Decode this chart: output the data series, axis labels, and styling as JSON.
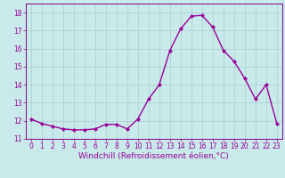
{
  "x": [
    0,
    1,
    2,
    3,
    4,
    5,
    6,
    7,
    8,
    9,
    10,
    11,
    12,
    13,
    14,
    15,
    16,
    17,
    18,
    19,
    20,
    21,
    22,
    23
  ],
  "y": [
    12.1,
    11.85,
    11.7,
    11.55,
    11.5,
    11.5,
    11.55,
    11.8,
    11.8,
    11.55,
    12.1,
    13.2,
    14.0,
    15.9,
    17.1,
    17.8,
    17.85,
    17.2,
    15.9,
    15.3,
    14.35,
    13.2,
    14.0,
    11.85
  ],
  "line_color": "#990099",
  "marker": "D",
  "marker_size": 2.2,
  "background_color": "#c8eaea",
  "grid_color": "#aacccc",
  "xlabel": "Windchill (Refroidissement éolien,°C)",
  "ylabel": "",
  "title": "",
  "xlim": [
    -0.5,
    23.5
  ],
  "ylim": [
    11,
    18.5
  ],
  "yticks": [
    11,
    12,
    13,
    14,
    15,
    16,
    17,
    18
  ],
  "xticks": [
    0,
    1,
    2,
    3,
    4,
    5,
    6,
    7,
    8,
    9,
    10,
    11,
    12,
    13,
    14,
    15,
    16,
    17,
    18,
    19,
    20,
    21,
    22,
    23
  ],
  "tick_label_fontsize": 5.5,
  "xlabel_fontsize": 6.5,
  "line_width": 1.0,
  "spine_color": "#880088"
}
